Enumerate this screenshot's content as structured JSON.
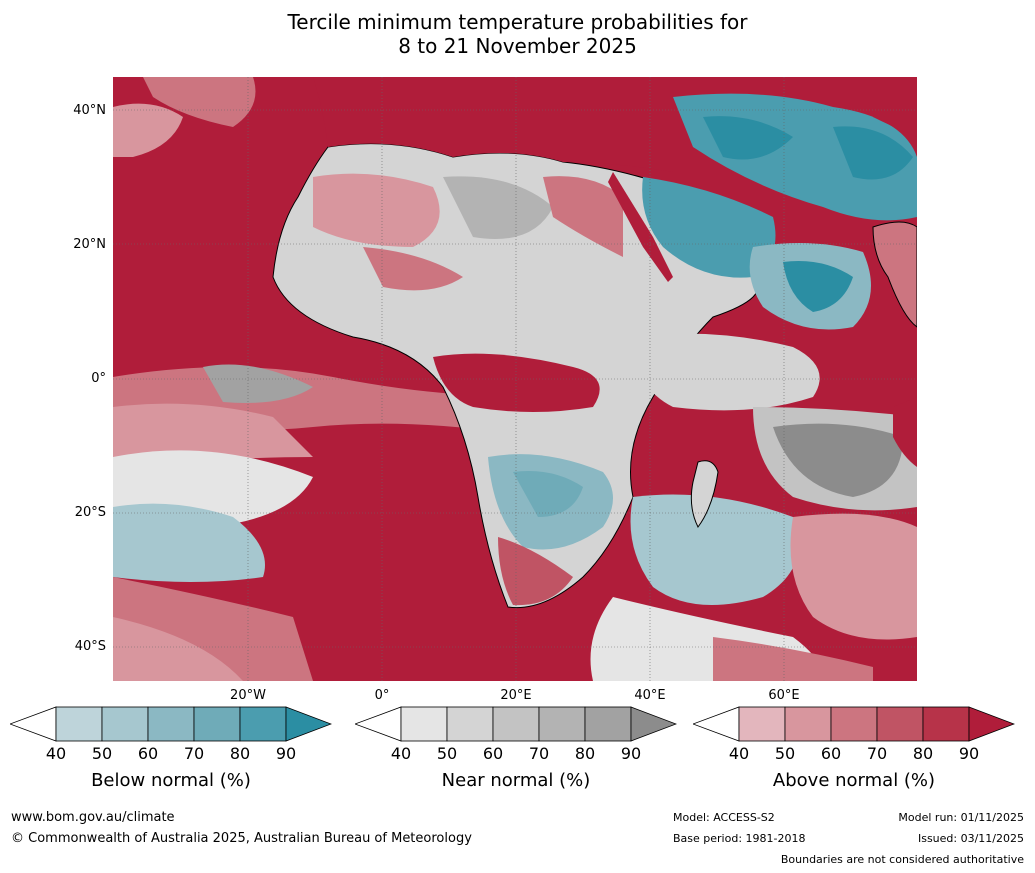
{
  "title_line1": "Tercile minimum temperature probabilities for",
  "title_line2": "8 to 21 November 2025",
  "lat_labels": [
    "40°N",
    "20°N",
    "0°",
    "20°S",
    "40°S"
  ],
  "lon_labels": [
    "20°W",
    "0°",
    "20°E",
    "40°E",
    "60°E"
  ],
  "colorbars": [
    {
      "label": "Below normal (%)",
      "ticks": [
        "40",
        "50",
        "60",
        "70",
        "80",
        "90"
      ],
      "colors": [
        "#bed4da",
        "#a6c7cf",
        "#8bb8c3",
        "#6fabb8",
        "#4b9daf",
        "#2b8ea3"
      ]
    },
    {
      "label": "Near normal (%)",
      "ticks": [
        "40",
        "50",
        "60",
        "70",
        "80",
        "90"
      ],
      "colors": [
        "#e5e5e5",
        "#d4d4d4",
        "#c3c3c3",
        "#b3b3b3",
        "#a2a2a2",
        "#8c8c8c"
      ]
    },
    {
      "label": "Above normal (%)",
      "ticks": [
        "40",
        "50",
        "60",
        "70",
        "80",
        "90"
      ],
      "colors": [
        "#e3b6bd",
        "#d8969e",
        "#cc7580",
        "#c05464",
        "#b73349",
        "#b01d3a"
      ]
    }
  ],
  "footer": {
    "website": "www.bom.gov.au/climate",
    "copyright": "© Commonwealth of Australia 2025, Australian Bureau of Meteorology",
    "model": "Model: ACCESS-S2",
    "base_period": "Base period: 1981-2018",
    "model_run": "Model run: 01/11/2025",
    "issued": "Issued: 03/11/2025",
    "disclaimer": "Boundaries are not considered authoritative"
  }
}
